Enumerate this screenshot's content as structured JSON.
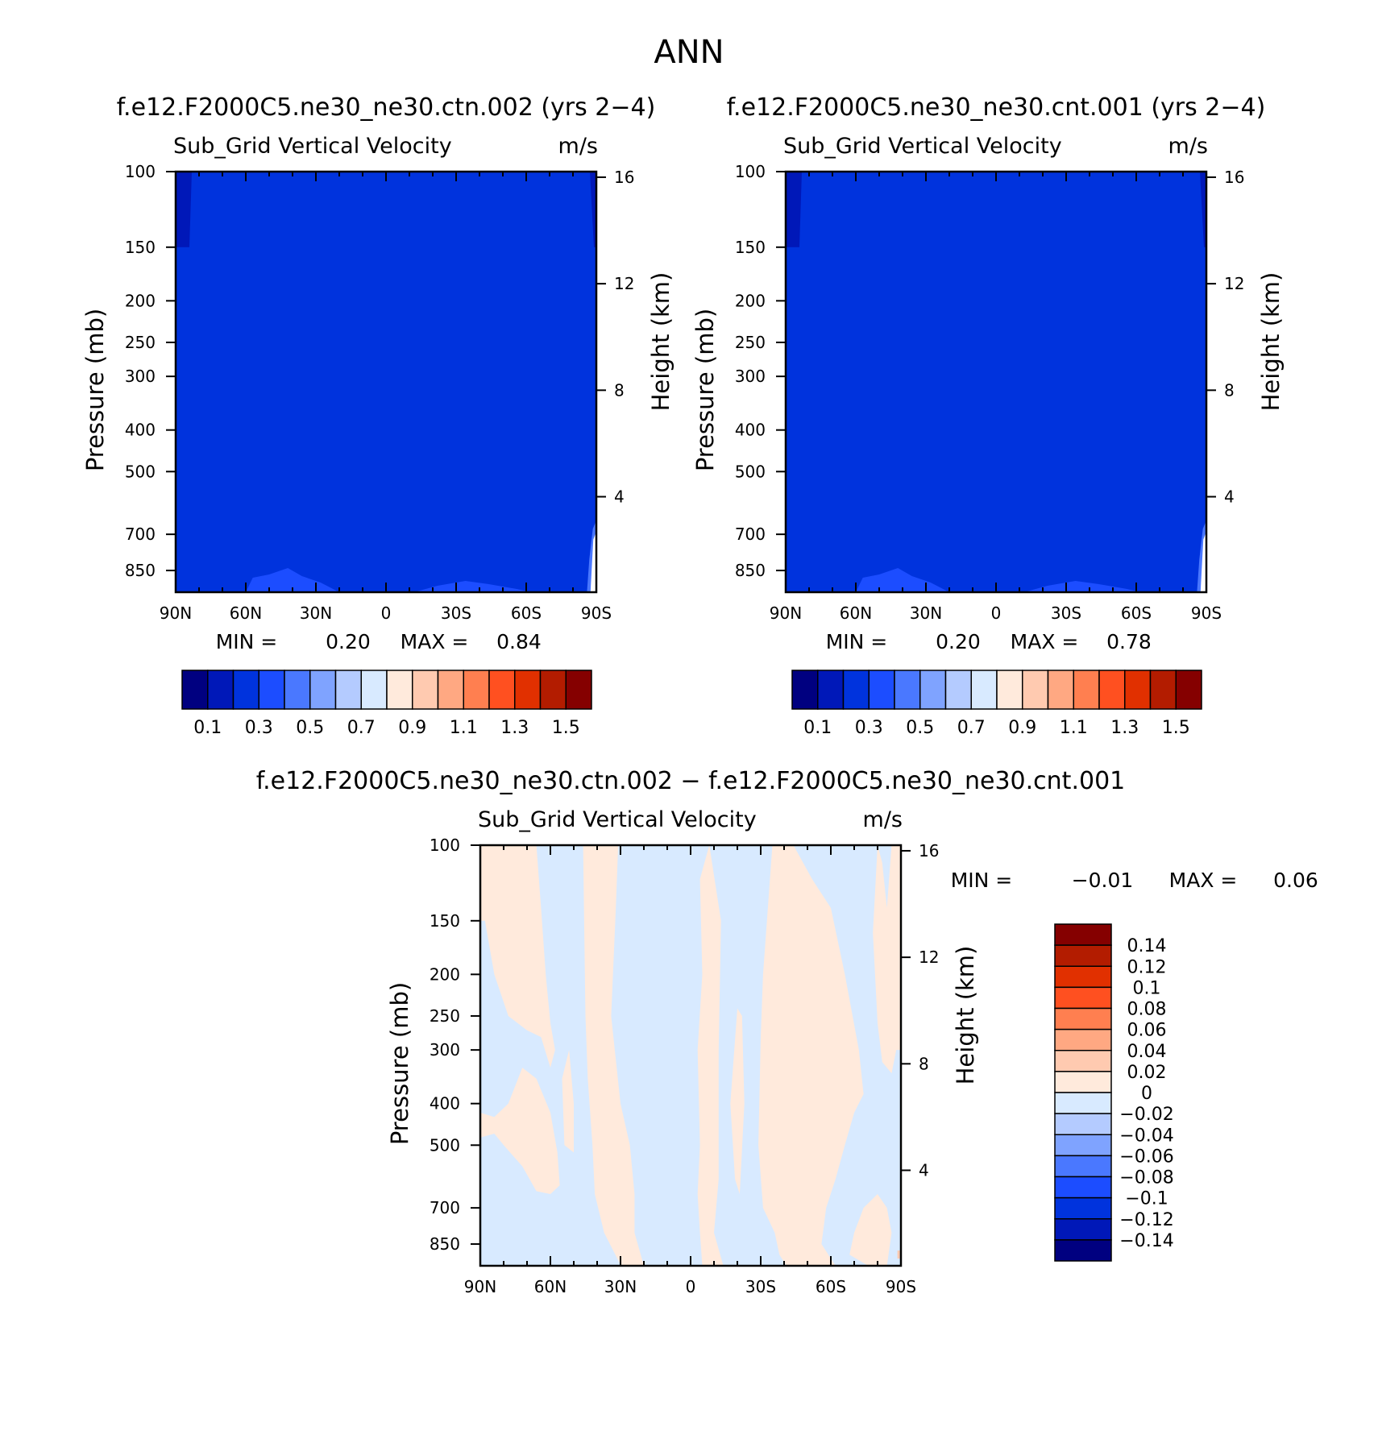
{
  "figure": {
    "main_title": "ANN"
  },
  "chart_data": [
    {
      "type": "contour",
      "title": "f.e12.F2000C5.ne30_ne30.ctn.002 (yrs 2-4)",
      "left_subtitle": "Sub_Grid Vertical Velocity",
      "right_subtitle": "m/s",
      "xlabel": "",
      "ylabel": "Pressure (mb)",
      "y2label": "Height (km)",
      "x_ticks": [
        "90N",
        "60N",
        "30N",
        "0",
        "30S",
        "60S",
        "90S"
      ],
      "y_ticks": [
        100,
        150,
        200,
        250,
        300,
        400,
        500,
        700,
        850
      ],
      "y_scale": "log",
      "ylim": [
        100,
        1000
      ],
      "y2_ticks": [
        16,
        12,
        8,
        4
      ],
      "min_label": "MIN =",
      "min_value": "0.20",
      "max_label": "MAX =",
      "max_value": "0.84",
      "colorbar": {
        "orientation": "horizontal",
        "labels": [
          "0.1",
          "0.3",
          "0.5",
          "0.7",
          "0.9",
          "1.1",
          "1.3",
          "1.5"
        ],
        "colors": [
          "#000080",
          "#0018b8",
          "#0033dd",
          "#1c4dff",
          "#4a78ff",
          "#7fa3ff",
          "#b4cbff",
          "#d8eaff",
          "#ffeadc",
          "#ffcab0",
          "#ffa882",
          "#ff7f50",
          "#ff5020",
          "#e13000",
          "#b31c00",
          "#850000"
        ]
      },
      "dominant_range": "0.2 to 0.3",
      "regions": [
        {
          "range": "0.1 to 0.2",
          "where": "near 90N and 90S above 150 mb"
        },
        {
          "range": "0.3 to 0.4",
          "where": "lowest levels near 40N and 40S"
        },
        {
          "range": "0.5 to 0.7",
          "where": "surface near 90S"
        }
      ]
    },
    {
      "type": "contour",
      "title": "f.e12.F2000C5.ne30_ne30.cnt.001 (yrs 2-4)",
      "left_subtitle": "Sub_Grid Vertical Velocity",
      "right_subtitle": "m/s",
      "xlabel": "",
      "ylabel": "Pressure (mb)",
      "y2label": "Height (km)",
      "x_ticks": [
        "90N",
        "60N",
        "30N",
        "0",
        "30S",
        "60S",
        "90S"
      ],
      "y_ticks": [
        100,
        150,
        200,
        250,
        300,
        400,
        500,
        700,
        850
      ],
      "y_scale": "log",
      "ylim": [
        100,
        1000
      ],
      "y2_ticks": [
        16,
        12,
        8,
        4
      ],
      "min_label": "MIN =",
      "min_value": "0.20",
      "max_label": "MAX =",
      "max_value": "0.78",
      "colorbar": {
        "orientation": "horizontal",
        "labels": [
          "0.1",
          "0.3",
          "0.5",
          "0.7",
          "0.9",
          "1.1",
          "1.3",
          "1.5"
        ],
        "colors": [
          "#000080",
          "#0018b8",
          "#0033dd",
          "#1c4dff",
          "#4a78ff",
          "#7fa3ff",
          "#b4cbff",
          "#d8eaff",
          "#ffeadc",
          "#ffcab0",
          "#ffa882",
          "#ff7f50",
          "#ff5020",
          "#e13000",
          "#b31c00",
          "#850000"
        ]
      },
      "dominant_range": "0.2 to 0.3",
      "regions": [
        {
          "range": "0.1 to 0.2",
          "where": "near 90N and 90S above 150 mb"
        },
        {
          "range": "0.3 to 0.4",
          "where": "lowest levels near 40N and 40S"
        },
        {
          "range": "0.5 to 0.7",
          "where": "surface near 90S"
        }
      ]
    },
    {
      "type": "contour",
      "title": "f.e12.F2000C5.ne30_ne30.ctn.002 - f.e12.F2000C5.ne30_ne30.cnt.001",
      "left_subtitle": "Sub_Grid Vertical Velocity",
      "right_subtitle": "m/s",
      "xlabel": "",
      "ylabel": "Pressure (mb)",
      "y2label": "Height (km)",
      "x_ticks": [
        "90N",
        "60N",
        "30N",
        "0",
        "30S",
        "60S",
        "90S"
      ],
      "y_ticks": [
        100,
        150,
        200,
        250,
        300,
        400,
        500,
        700,
        850
      ],
      "y_scale": "log",
      "ylim": [
        100,
        1000
      ],
      "y2_ticks": [
        16,
        12,
        8,
        4
      ],
      "min_label": "MIN =",
      "min_value": "-0.01",
      "max_label": "MAX =",
      "max_value": "0.06",
      "colorbar": {
        "orientation": "vertical",
        "labels": [
          "0.14",
          "0.12",
          "0.1",
          "0.08",
          "0.06",
          "0.04",
          "0.02",
          "0",
          "-0.02",
          "-0.04",
          "-0.06",
          "-0.08",
          "-0.1",
          "-0.12",
          "-0.14"
        ],
        "colors": [
          "#850000",
          "#b31c00",
          "#e13000",
          "#ff5020",
          "#ff7f50",
          "#ffa882",
          "#ffcab0",
          "#ffeadc",
          "#d8eaff",
          "#b4cbff",
          "#7fa3ff",
          "#4a78ff",
          "#1c4dff",
          "#0033dd",
          "#0018b8",
          "#000080"
        ]
      },
      "dominant_range": "-0.02 to 0 and 0 to 0.02",
      "positive_bands_approx": [
        {
          "lat_from": "90N",
          "lat_to": "60N",
          "levels": "mostly above 300 mb, deepening toward 60N"
        },
        {
          "lat_from": "60N",
          "lat_to": "10N",
          "levels": "columns spanning 100-850 mb"
        },
        {
          "lat_from": "0",
          "lat_to": "10S",
          "levels": "100-850 mb"
        },
        {
          "lat_from": "25S",
          "lat_to": "80S",
          "levels": "100-850 mb with gaps"
        }
      ]
    }
  ]
}
